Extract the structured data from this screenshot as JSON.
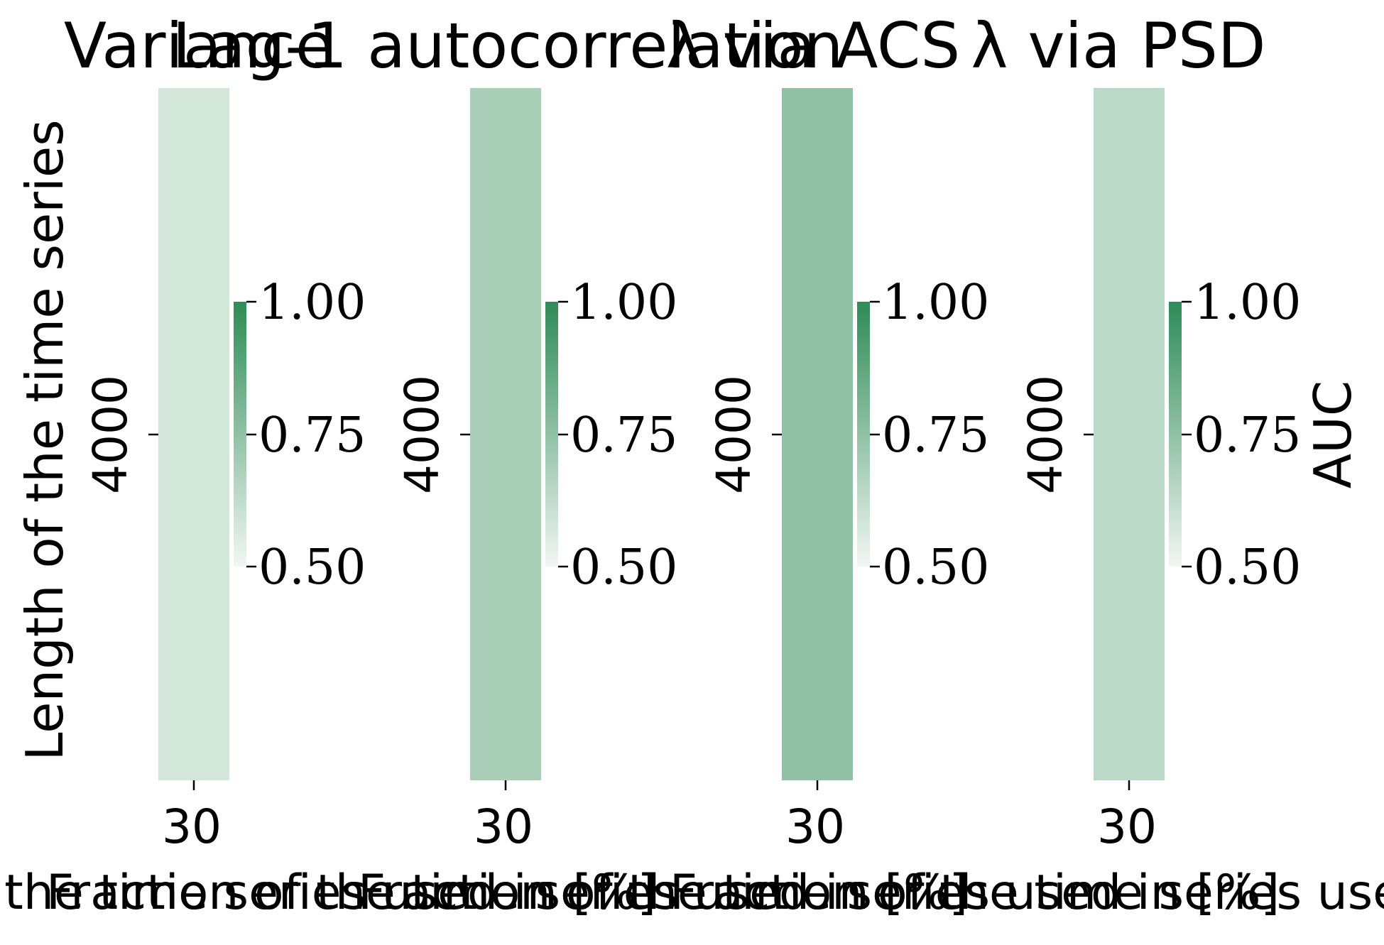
{
  "chart_data": [
    {
      "type": "heatmap",
      "title": "Variance",
      "x_categories": [
        "30"
      ],
      "y_categories": [
        "4000"
      ],
      "values": [
        [
          0.58
        ]
      ],
      "xlabel": "Fraction of the time series used in [%]",
      "ylabel": "Length of the time series",
      "colorbar": {
        "min": 0.5,
        "max": 1.0,
        "ticks": [
          "0.50",
          "0.75",
          "1.00"
        ],
        "label": ""
      }
    },
    {
      "type": "heatmap",
      "title": "Lag-1 autocorrelation",
      "x_categories": [
        "30"
      ],
      "y_categories": [
        "4000"
      ],
      "values": [
        [
          0.69
        ]
      ],
      "xlabel": "Fraction of the time series used in [%]",
      "ylabel": "",
      "colorbar": {
        "min": 0.5,
        "max": 1.0,
        "ticks": [
          "0.50",
          "0.75",
          "1.00"
        ],
        "label": ""
      }
    },
    {
      "type": "heatmap",
      "title": "λ via ACS",
      "x_categories": [
        "30"
      ],
      "y_categories": [
        "4000"
      ],
      "values": [
        [
          0.75
        ]
      ],
      "xlabel": "Fraction of the time series used in [%]",
      "ylabel": "",
      "colorbar": {
        "min": 0.5,
        "max": 1.0,
        "ticks": [
          "0.50",
          "0.75",
          "1.00"
        ],
        "label": ""
      }
    },
    {
      "type": "heatmap",
      "title": "λ via PSD",
      "x_categories": [
        "30"
      ],
      "y_categories": [
        "4000"
      ],
      "values": [
        [
          0.64
        ]
      ],
      "xlabel": "Fraction of the time series used in [%]",
      "ylabel": "",
      "colorbar": {
        "min": 0.5,
        "max": 1.0,
        "ticks": [
          "0.50",
          "0.75",
          "1.00"
        ],
        "label": "AUC"
      }
    }
  ],
  "colors": {
    "low": "#f2f7f3",
    "high": "#2e8b57"
  }
}
